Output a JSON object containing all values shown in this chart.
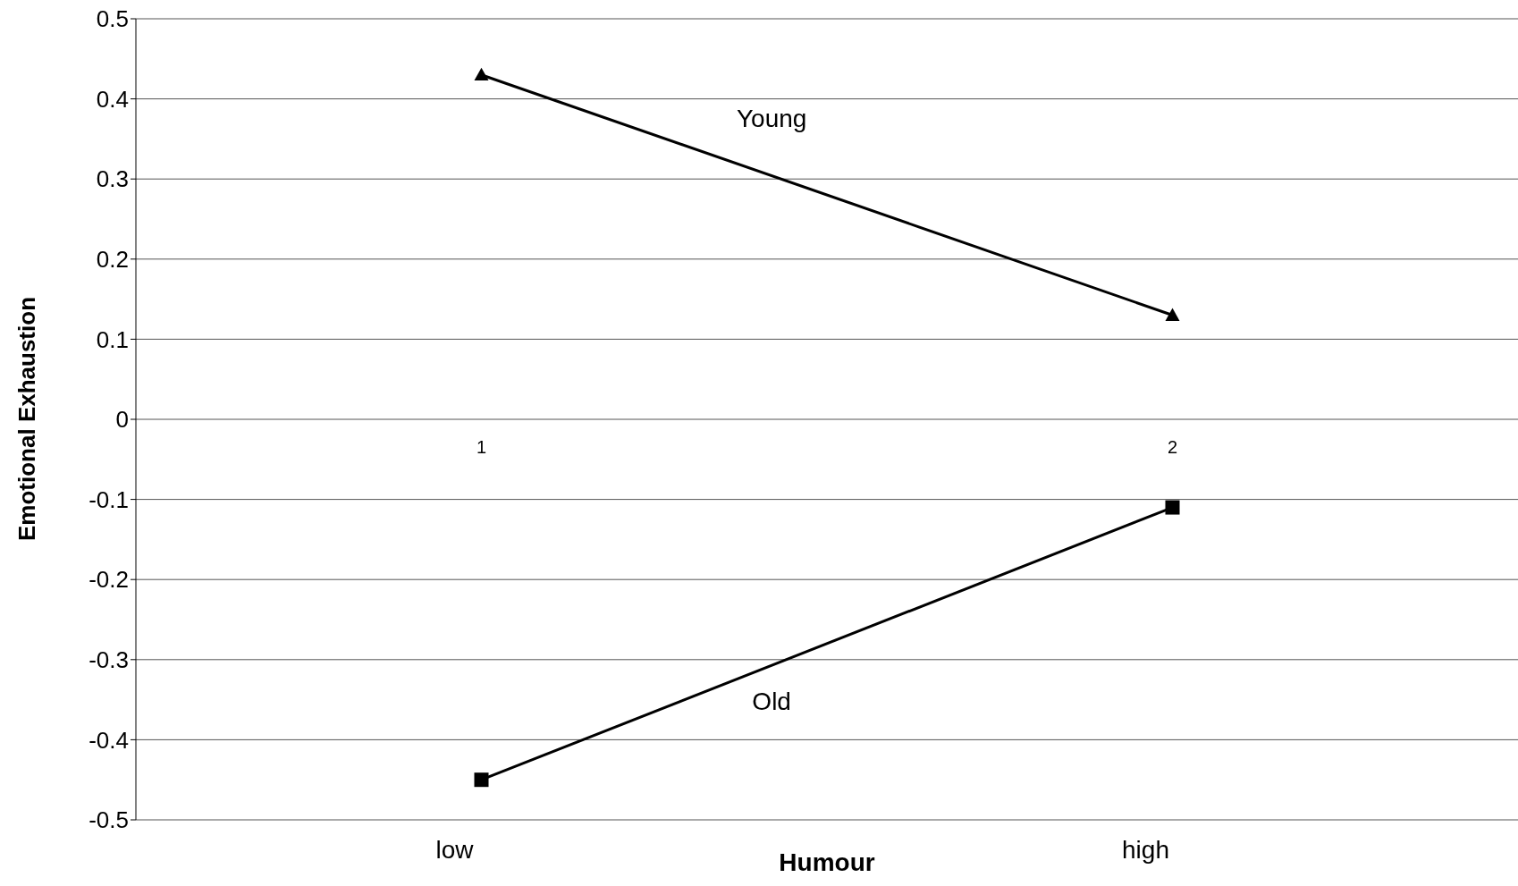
{
  "chart_data": {
    "type": "line",
    "xlabel": "Humour",
    "ylabel": "Emotional Exhaustion",
    "categories": [
      "1",
      "2"
    ],
    "series": [
      {
        "name": "Young",
        "color": "#000000",
        "marker": "triangle",
        "values": [
          0.43,
          0.13
        ]
      },
      {
        "name": "Old",
        "color": "#000000",
        "marker": "square",
        "values": [
          -0.45,
          -0.11
        ]
      }
    ],
    "annotations": [
      "low",
      "high"
    ],
    "ylim": [
      -0.5,
      0.5
    ],
    "yticks": [
      -0.5,
      -0.4,
      -0.3,
      -0.2,
      -0.1,
      0,
      0.1,
      0.2,
      0.3,
      0.4,
      0.5
    ],
    "grid": "y",
    "legend": false,
    "line_style": "solid"
  }
}
